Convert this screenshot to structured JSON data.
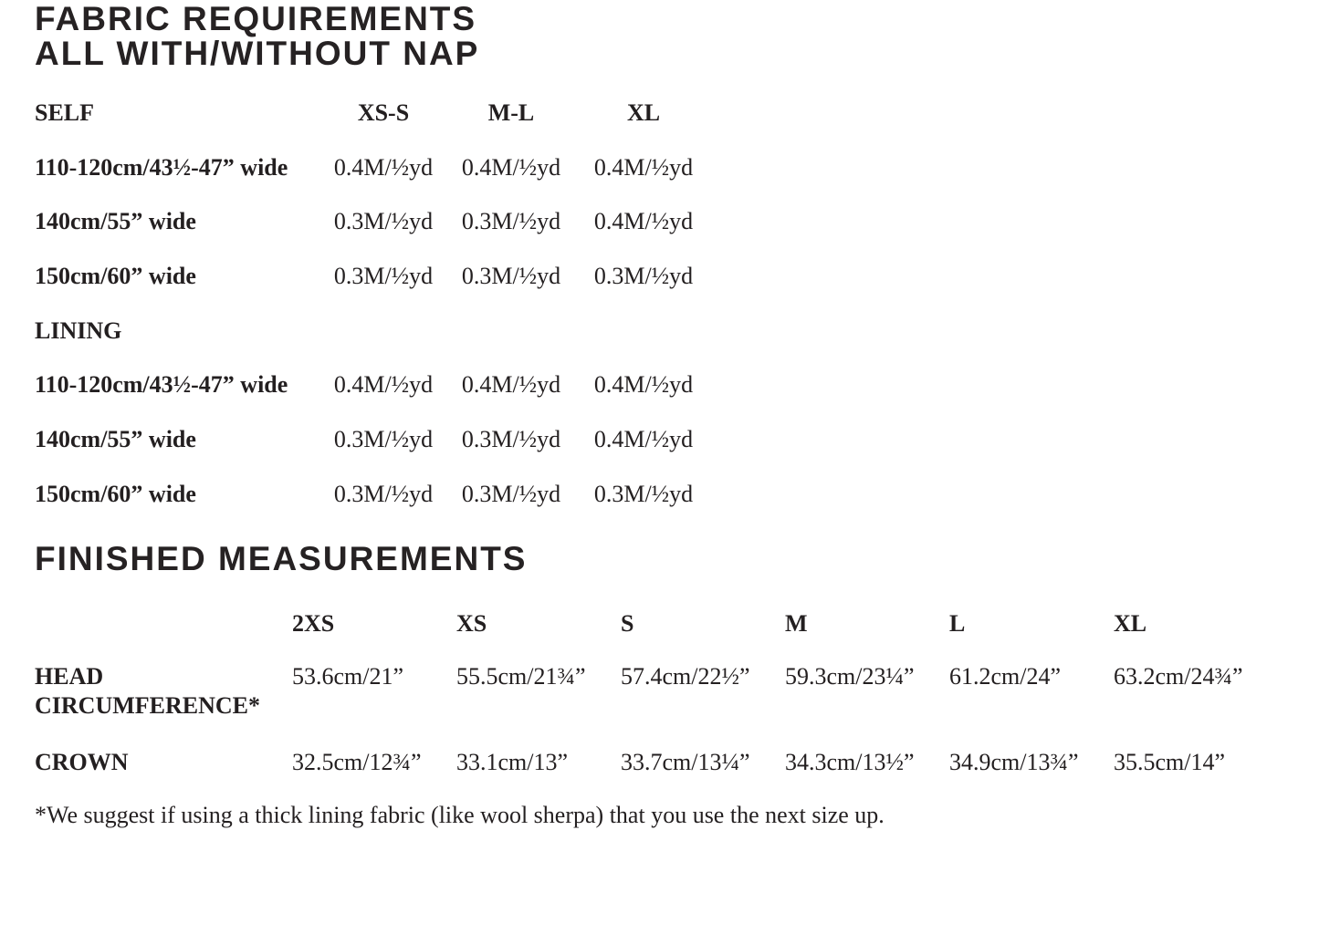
{
  "page": {
    "background_color": "#ffffff",
    "text_color": "#231f20"
  },
  "fabric_requirements": {
    "title_line1": "FABRIC REQUIREMENTS",
    "title_line2": "ALL WITH/WITHOUT NAP",
    "size_headers": [
      "XS-S",
      "M-L",
      "XL"
    ],
    "sections": [
      {
        "label": "SELF",
        "rows": [
          {
            "label": "110-120cm/43½-47” wide",
            "values": [
              "0.4M/½yd",
              "0.4M/½yd",
              "0.4M/½yd"
            ]
          },
          {
            "label": "140cm/55” wide",
            "values": [
              "0.3M/½yd",
              "0.3M/½yd",
              "0.4M/½yd"
            ]
          },
          {
            "label": "150cm/60” wide",
            "values": [
              "0.3M/½yd",
              "0.3M/½yd",
              "0.3M/½yd"
            ]
          }
        ]
      },
      {
        "label": "LINING",
        "rows": [
          {
            "label": "110-120cm/43½-47” wide",
            "values": [
              "0.4M/½yd",
              "0.4M/½yd",
              "0.4M/½yd"
            ]
          },
          {
            "label": "140cm/55” wide",
            "values": [
              "0.3M/½yd",
              "0.3M/½yd",
              "0.4M/½yd"
            ]
          },
          {
            "label": "150cm/60” wide",
            "values": [
              "0.3M/½yd",
              "0.3M/½yd",
              "0.3M/½yd"
            ]
          }
        ]
      }
    ]
  },
  "finished_measurements": {
    "title": "FINISHED MEASUREMENTS",
    "size_headers": [
      "2XS",
      "XS",
      "S",
      "M",
      "L",
      "XL"
    ],
    "rows": [
      {
        "label": "HEAD CIRCUMFERENCE*",
        "values": [
          "53.6cm/21”",
          "55.5cm/21¾”",
          "57.4cm/22½”",
          "59.3cm/23¼”",
          "61.2cm/24”",
          "63.2cm/24¾”"
        ]
      },
      {
        "label": "CROWN",
        "values": [
          "32.5cm/12¾”",
          "33.1cm/13”",
          "33.7cm/13¼”",
          "34.3cm/13½”",
          "34.9cm/13¾”",
          "35.5cm/14”"
        ]
      }
    ],
    "footnote": "*We suggest if using a thick lining fabric (like wool sherpa) that you use the next size up."
  }
}
